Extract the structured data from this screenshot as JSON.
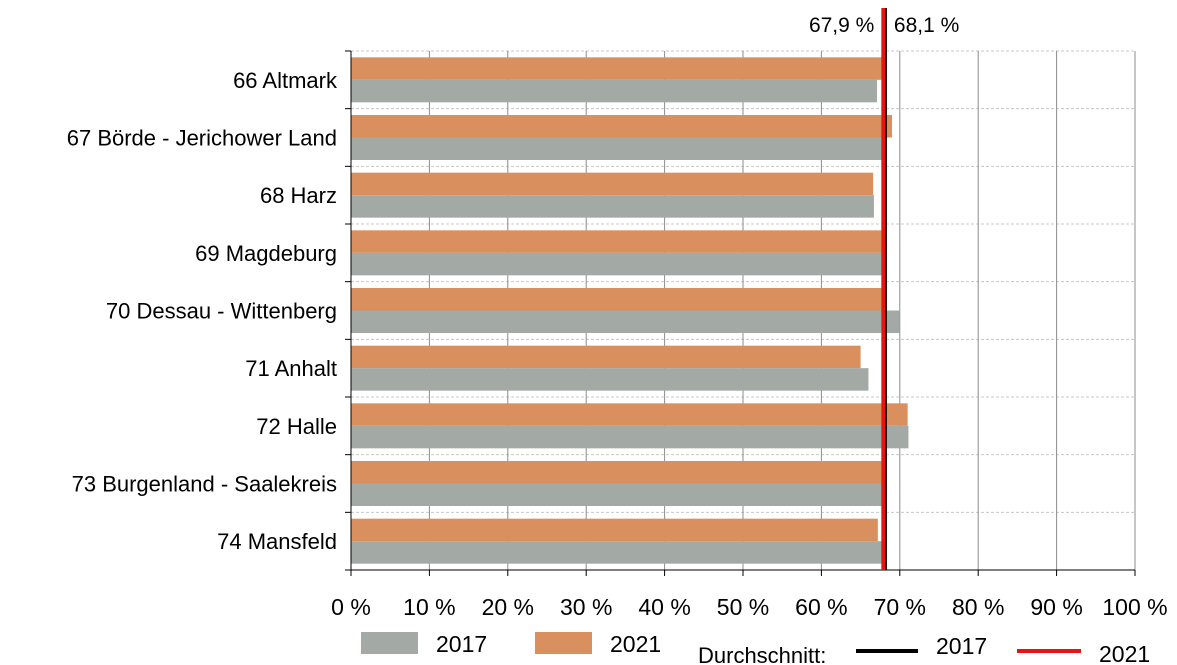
{
  "chart_data": {
    "type": "bar",
    "orientation": "horizontal",
    "categories": [
      "66 Altmark",
      "67 Börde - Jerichower Land",
      "68 Harz",
      "69 Magdeburg",
      "70 Dessau - Wittenberg",
      "71 Anhalt",
      "72 Halle",
      "73 Burgenland - Saalekreis",
      "74 Mansfeld"
    ],
    "series": [
      {
        "name": "2021",
        "color": "#DA8F5F",
        "values": [
          68.2,
          69.0,
          66.6,
          68.1,
          68.1,
          65.0,
          71.0,
          68.1,
          67.2
        ]
      },
      {
        "name": "2017",
        "color": "#A3A9A4",
        "values": [
          67.1,
          68.1,
          66.7,
          68.1,
          70.0,
          66.0,
          71.1,
          68.0,
          68.0
        ]
      }
    ],
    "reference_lines": [
      {
        "name": "2017",
        "value": 68.1,
        "label": "68,1 %",
        "color": "#000000"
      },
      {
        "name": "2021",
        "value": 67.9,
        "label": "67,9 %",
        "color": "#E8140F"
      }
    ],
    "xlim": [
      0,
      100
    ],
    "xticks": [
      "0 %",
      "10 %",
      "20 %",
      "30 %",
      "40 %",
      "50 %",
      "60 %",
      "70 %",
      "80 %",
      "90 %",
      "100 %"
    ],
    "grid": true,
    "legend": {
      "position": "bottom",
      "bar_items": [
        {
          "label": "2017",
          "color": "#A3A9A4"
        },
        {
          "label": "2021",
          "color": "#DA8F5F"
        }
      ],
      "line_prefix": "Durchschnitt:",
      "line_items": [
        {
          "label": "2017",
          "color": "#000000"
        },
        {
          "label": "2021",
          "color": "#E8140F"
        }
      ]
    }
  }
}
